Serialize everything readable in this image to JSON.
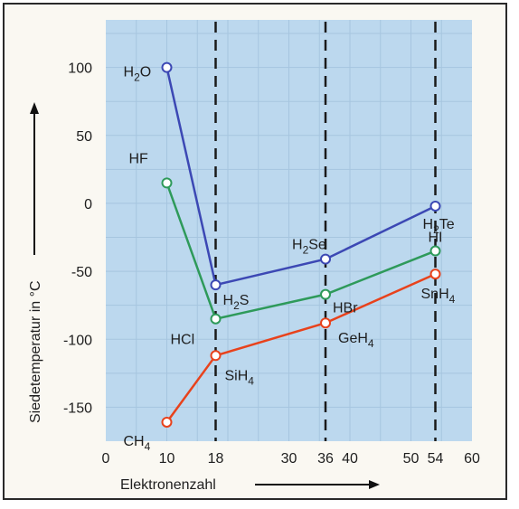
{
  "chart_data": {
    "type": "line",
    "xlabel": "Elektronenzahl",
    "ylabel": "Siedetemperatur in °C",
    "xlim": [
      0,
      60
    ],
    "ylim": [
      -175,
      135
    ],
    "x_ticks": [
      0,
      10,
      18,
      30,
      36,
      40,
      50,
      54,
      60
    ],
    "y_ticks": [
      100,
      50,
      0,
      -50,
      -100,
      -150
    ],
    "dashed_verticals_x": [
      18,
      36,
      54
    ],
    "background_color": "#bcd8ee",
    "grid": true,
    "series": [
      {
        "color": "#3c48b4",
        "points": [
          {
            "x": 10,
            "y": 100,
            "label": "H",
            "label_sub": "2",
            "label_tail": "O"
          },
          {
            "x": 18,
            "y": -60,
            "label": "H",
            "label_sub": "2",
            "label_tail": "S"
          },
          {
            "x": 36,
            "y": -41,
            "label": "H",
            "label_sub": "2",
            "label_tail": "Se"
          },
          {
            "x": 54,
            "y": -2,
            "label": "H",
            "label_sub": "2",
            "label_tail": "Te"
          }
        ]
      },
      {
        "color": "#2e9a5a",
        "points": [
          {
            "x": 10,
            "y": 15,
            "label": "HF",
            "label_sub": "",
            "label_tail": ""
          },
          {
            "x": 18,
            "y": -85,
            "label": "HCl",
            "label_sub": "",
            "label_tail": ""
          },
          {
            "x": 36,
            "y": -67,
            "label": "HBr",
            "label_sub": "",
            "label_tail": ""
          },
          {
            "x": 54,
            "y": -35,
            "label": "HI",
            "label_sub": "",
            "label_tail": ""
          }
        ]
      },
      {
        "color": "#e8421c",
        "points": [
          {
            "x": 10,
            "y": -161,
            "label": "CH",
            "label_sub": "4",
            "label_tail": ""
          },
          {
            "x": 18,
            "y": -112,
            "label": "SiH",
            "label_sub": "4",
            "label_tail": ""
          },
          {
            "x": 36,
            "y": -88,
            "label": "GeH",
            "label_sub": "4",
            "label_tail": ""
          },
          {
            "x": 54,
            "y": -52,
            "label": "SnH",
            "label_sub": "4",
            "label_tail": ""
          }
        ]
      }
    ]
  }
}
